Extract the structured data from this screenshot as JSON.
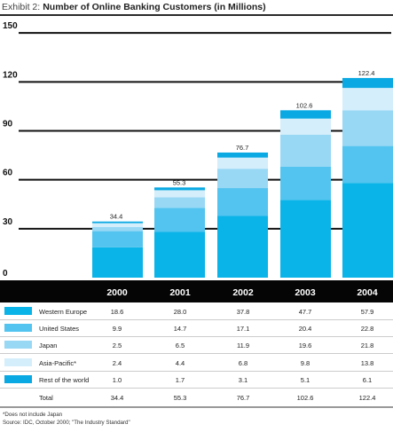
{
  "title": {
    "prefix": "Exhibit 2:",
    "main": "Number of Online Banking Customers (in Millions)"
  },
  "chart_data": {
    "type": "bar",
    "stacked": true,
    "title": "Number of Online Banking Customers (in Millions)",
    "categories": [
      "2000",
      "2001",
      "2002",
      "2003",
      "2004"
    ],
    "yticks": [
      0,
      30,
      60,
      90,
      120,
      150
    ],
    "ylim": [
      0,
      150
    ],
    "series": [
      {
        "name": "Western Europe",
        "values": [
          18.6,
          28.0,
          37.8,
          47.7,
          57.9
        ],
        "color": "#0ab3e8"
      },
      {
        "name": "United States",
        "values": [
          9.9,
          14.7,
          17.1,
          20.4,
          22.8
        ],
        "color": "#52c4ef"
      },
      {
        "name": "Japan",
        "values": [
          2.5,
          6.5,
          11.9,
          19.6,
          21.8
        ],
        "color": "#98d8f5"
      },
      {
        "name": "Asia-Pacific*",
        "values": [
          2.4,
          4.4,
          6.8,
          9.8,
          13.8
        ],
        "color": "#d4eefb"
      },
      {
        "name": "Rest of the world",
        "values": [
          1.0,
          1.7,
          3.1,
          5.1,
          6.1
        ],
        "color": "#0aa9e3"
      }
    ],
    "totals": {
      "label": "Total",
      "values": [
        34.4,
        55.3,
        76.7,
        102.6,
        122.4
      ]
    },
    "value_labels": {
      "Western Europe": [
        "18.6",
        "28.0",
        "37.8",
        "47.7",
        "57.9"
      ],
      "United States": [
        "9.9",
        "14.7",
        "17.1",
        "20.4",
        "22.8"
      ],
      "Japan": [
        "2.5",
        "6.5",
        "11.9",
        "19.6",
        "21.8"
      ],
      "Asia-Pacific*": [
        "2.4",
        "4.4",
        "6.8",
        "9.8",
        "13.8"
      ],
      "Rest of the world": [
        "1.0",
        "1.7",
        "3.1",
        "5.1",
        "6.1"
      ],
      "Total": [
        "34.4",
        "55.3",
        "76.7",
        "102.6",
        "122.4"
      ]
    }
  },
  "footnotes": {
    "note": "*Does not include Japan",
    "source": "Source: IDC, October 2000; \"The Industry Standard\""
  },
  "colors": {
    "header_bar": "#050505",
    "axis": "#111111",
    "row_rule": "#999999"
  }
}
